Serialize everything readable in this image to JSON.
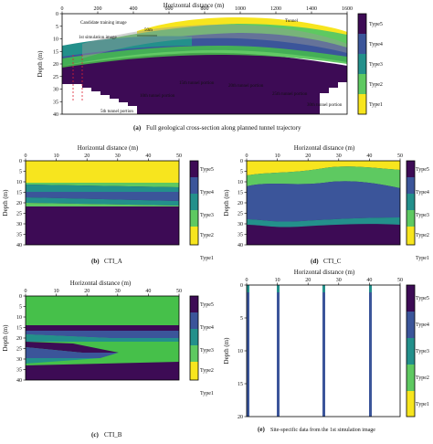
{
  "colors": {
    "type5": "#46e04a",
    "type4": "#3b559a",
    "type3": "#23908b",
    "type2": "#5ec961",
    "type1": "#f7e51e",
    "deep": "#3d0b55",
    "type5_bar": "#3b0a55"
  },
  "legend_labels": [
    "Type5",
    "Type4",
    "Type3",
    "Type2",
    "Type1"
  ],
  "panel_a": {
    "xlabel": "Horizontal distance (m)",
    "ylabel": "Depth (m)",
    "xticks": [
      "0",
      "200",
      "400",
      "600",
      "800",
      "1000",
      "1200",
      "1400",
      "1600"
    ],
    "yticks": [
      "0",
      "5",
      "10",
      "15",
      "20",
      "25",
      "30",
      "35",
      "40"
    ],
    "caption_letter": "(a)",
    "caption": "Full geological cross-section along planned tunnel trajectory",
    "annotations": {
      "candidate": "Candidate training image",
      "sim": "1st simulation image",
      "scale": "50m",
      "tunnel": "Tunnel",
      "t5": "5th tunnel portion",
      "t10": "10th tunnel portion",
      "t15": "15th tunnel portion",
      "t20": "20th tunnel portion",
      "t25": "25th tunnel portion",
      "t30": "30th tunnel portion"
    }
  },
  "panel_b": {
    "xlabel": "Horizontal distance (m)",
    "ylabel": "Depth (m)",
    "xticks": [
      "0",
      "10",
      "20",
      "30",
      "40",
      "50"
    ],
    "yticks": [
      "0",
      "5",
      "10",
      "15",
      "20",
      "25",
      "30",
      "35",
      "40"
    ],
    "caption_letter": "(b)",
    "caption": "CTI_A"
  },
  "panel_c": {
    "xlabel": "Horizontal distance (m)",
    "ylabel": "Depth (m)",
    "xticks": [
      "0",
      "10",
      "20",
      "30",
      "40",
      "50"
    ],
    "yticks": [
      "0",
      "5",
      "10",
      "15",
      "20",
      "25",
      "30",
      "35",
      "40"
    ],
    "caption_letter": "(c)",
    "caption": "CTI_B"
  },
  "panel_d": {
    "xlabel": "Horizontal distance (m)",
    "ylabel": "Depth (m)",
    "xticks": [
      "0",
      "10",
      "20",
      "30",
      "40",
      "50"
    ],
    "yticks": [
      "0",
      "5",
      "10",
      "15",
      "20",
      "25",
      "30",
      "35",
      "40"
    ],
    "caption_letter": "(d)",
    "caption": "CTI_C"
  },
  "panel_e": {
    "xlabel": "Horizontal distance (m)",
    "ylabel": "Depth (m)",
    "xticks": [
      "0",
      "10",
      "20",
      "30",
      "40",
      "50"
    ],
    "yticks": [
      "0",
      "5",
      "10",
      "15",
      "20"
    ],
    "caption_letter": "(e)",
    "caption": "Site-specific data from the 1st simulation image"
  }
}
